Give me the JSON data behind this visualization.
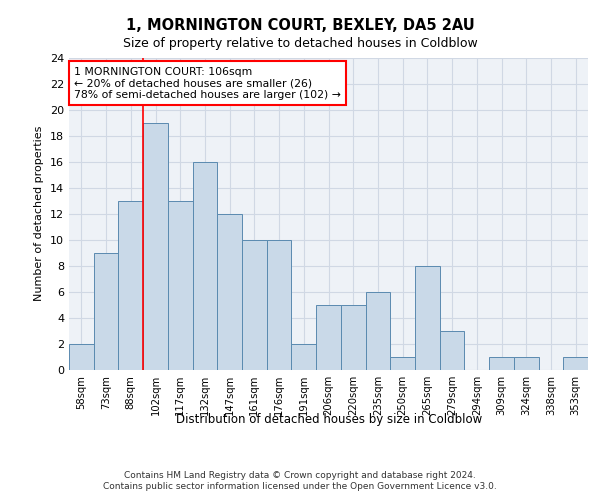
{
  "title1": "1, MORNINGTON COURT, BEXLEY, DA5 2AU",
  "title2": "Size of property relative to detached houses in Coldblow",
  "xlabel": "Distribution of detached houses by size in Coldblow",
  "ylabel": "Number of detached properties",
  "categories": [
    "58sqm",
    "73sqm",
    "88sqm",
    "102sqm",
    "117sqm",
    "132sqm",
    "147sqm",
    "161sqm",
    "176sqm",
    "191sqm",
    "206sqm",
    "220sqm",
    "235sqm",
    "250sqm",
    "265sqm",
    "279sqm",
    "294sqm",
    "309sqm",
    "324sqm",
    "338sqm",
    "353sqm"
  ],
  "values": [
    2,
    9,
    13,
    19,
    13,
    16,
    12,
    10,
    10,
    2,
    5,
    5,
    6,
    1,
    8,
    3,
    0,
    1,
    1,
    0,
    1
  ],
  "bar_color": "#c9d9e8",
  "bar_edge_color": "#5a8ab0",
  "highlight_index": 3,
  "annotation_text": "1 MORNINGTON COURT: 106sqm\n← 20% of detached houses are smaller (26)\n78% of semi-detached houses are larger (102) →",
  "annotation_box_color": "white",
  "annotation_box_edge_color": "red",
  "grid_color": "#d0d8e4",
  "background_color": "#eef2f7",
  "footer1": "Contains HM Land Registry data © Crown copyright and database right 2024.",
  "footer2": "Contains public sector information licensed under the Open Government Licence v3.0.",
  "ylim": [
    0,
    24
  ],
  "yticks": [
    0,
    2,
    4,
    6,
    8,
    10,
    12,
    14,
    16,
    18,
    20,
    22,
    24
  ]
}
